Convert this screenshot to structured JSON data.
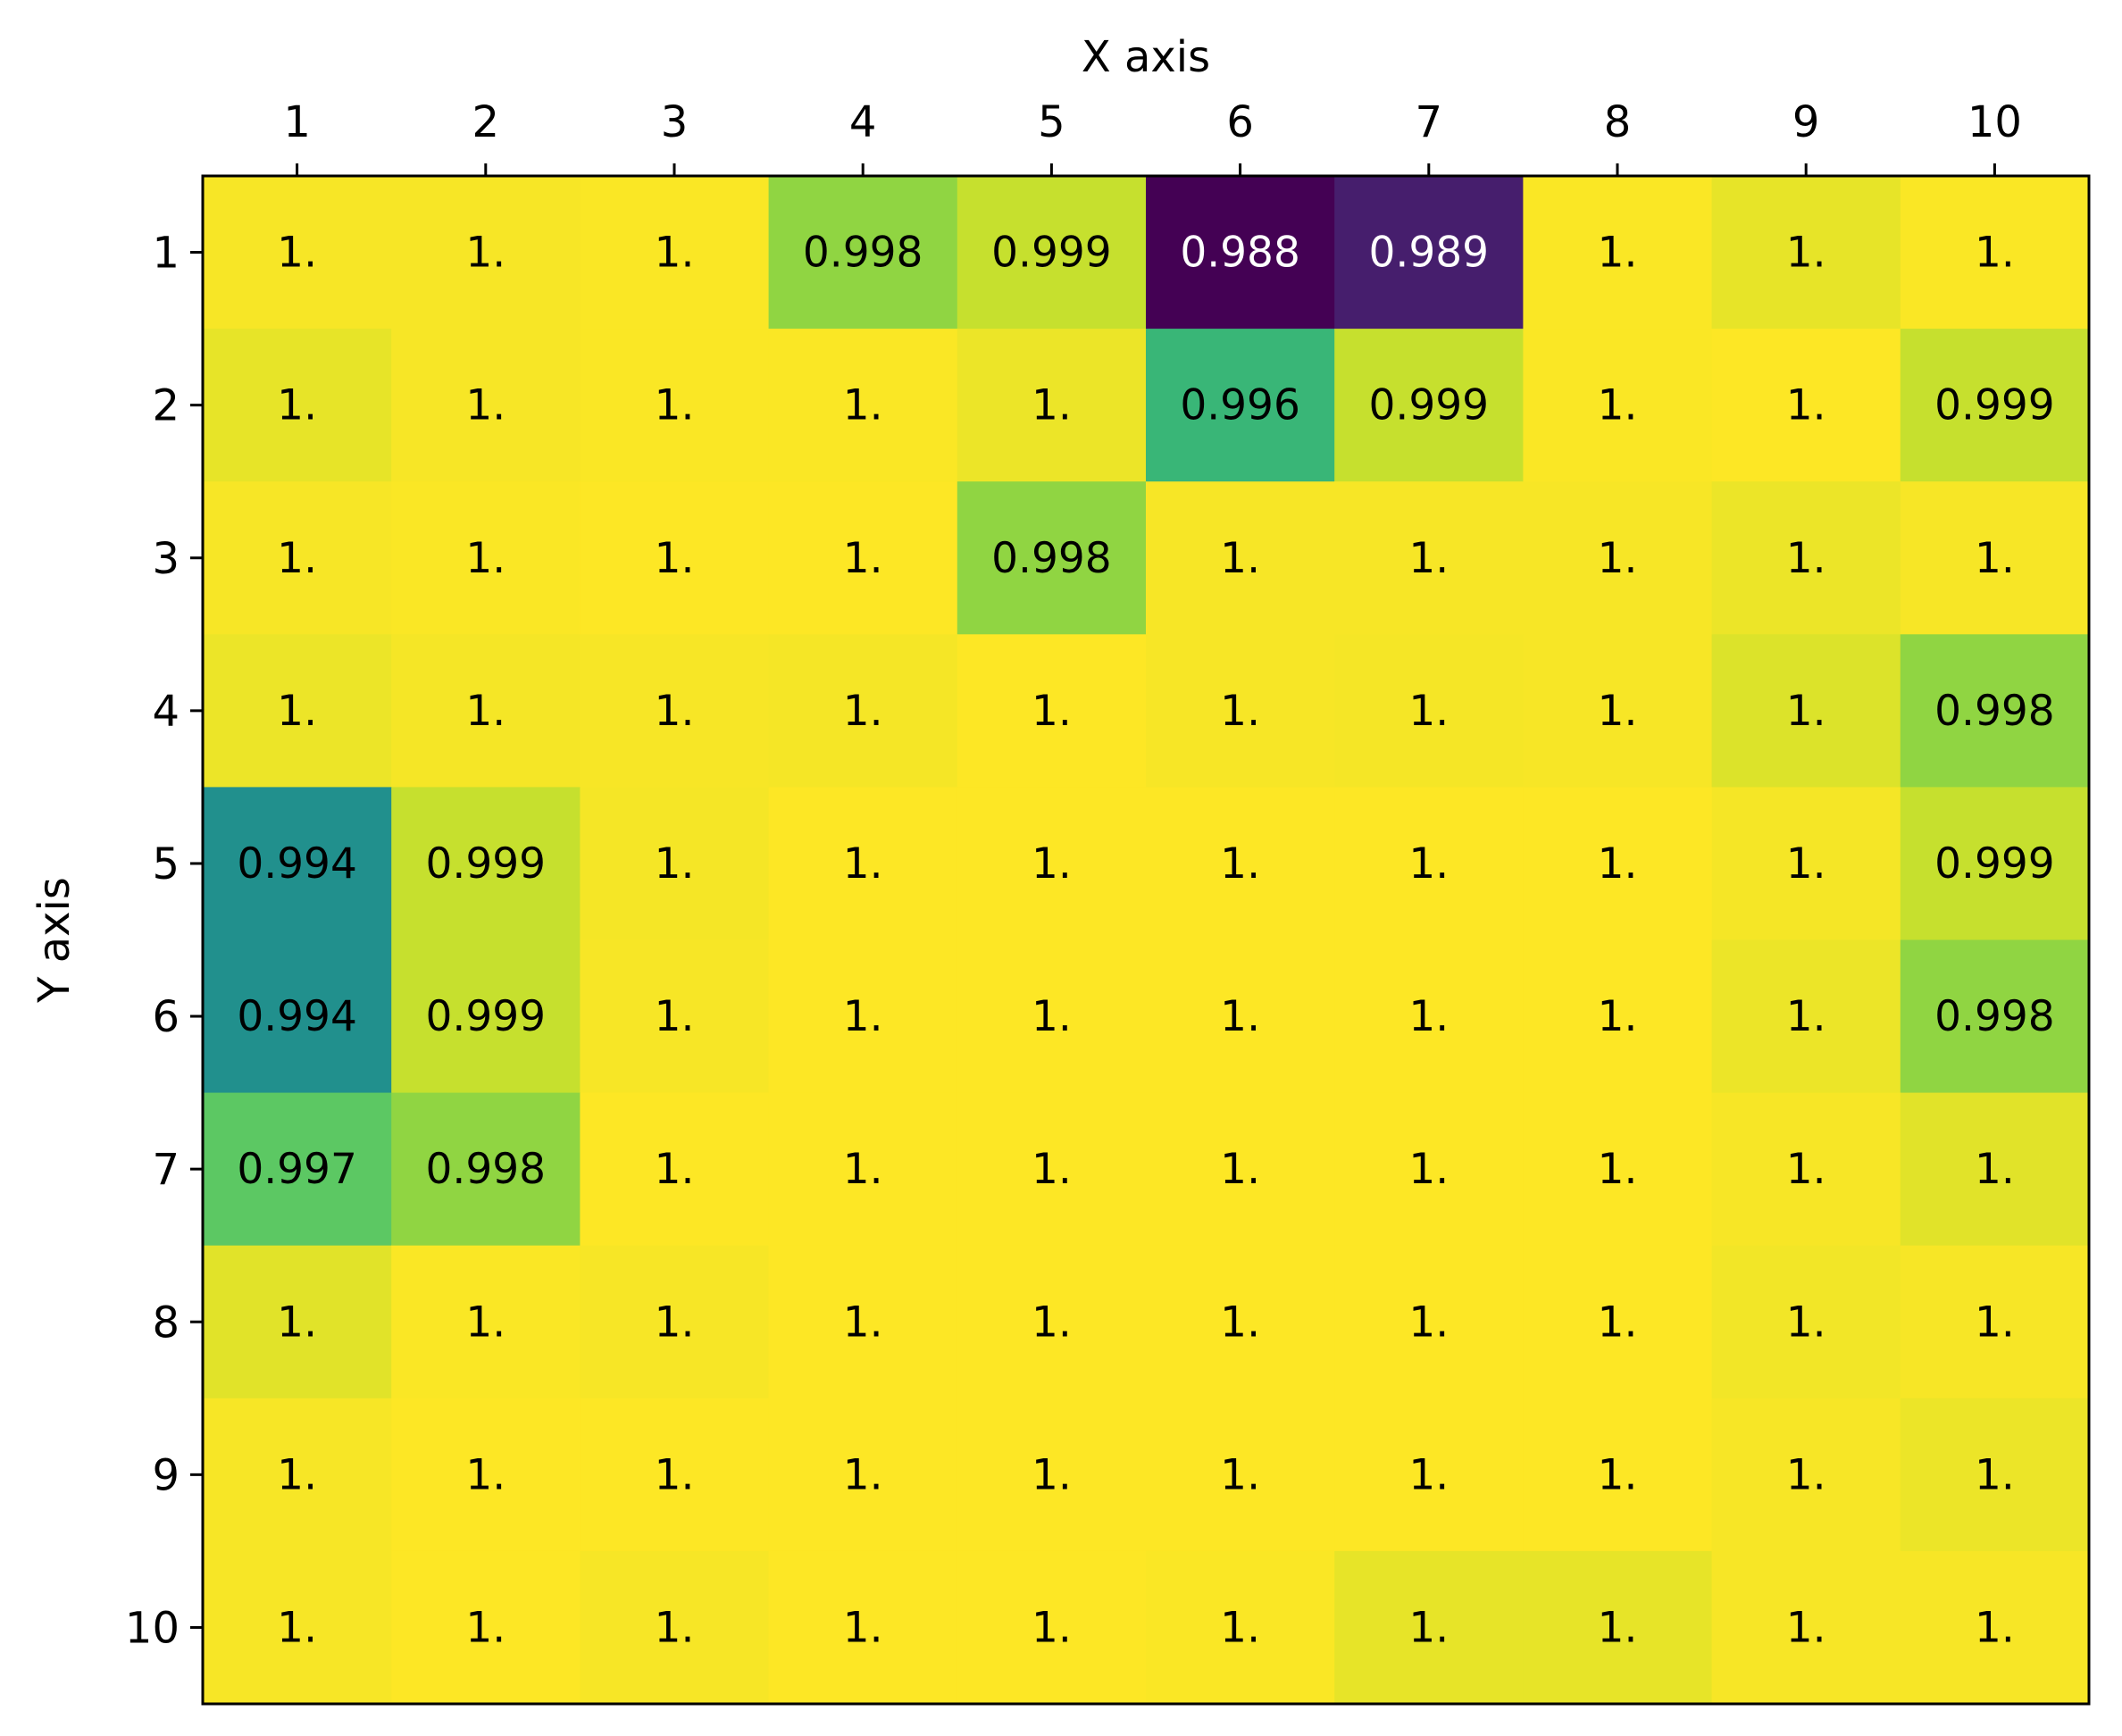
{
  "chart_data": {
    "type": "heatmap",
    "title": "",
    "xlabel": "X axis",
    "ylabel": "Y axis",
    "x_categories": [
      "1",
      "2",
      "3",
      "4",
      "5",
      "6",
      "7",
      "8",
      "9",
      "10"
    ],
    "y_categories": [
      "1",
      "2",
      "3",
      "4",
      "5",
      "6",
      "7",
      "8",
      "9",
      "10"
    ],
    "x_axis_position": "top",
    "colormap": "viridis",
    "grid": false,
    "legend": "none",
    "values": [
      [
        0.9999,
        0.9999,
        0.99995,
        0.998,
        0.999,
        0.988,
        0.989,
        0.99995,
        0.9996,
        0.99995
      ],
      [
        0.9996,
        0.9999,
        0.99995,
        0.99995,
        0.9997,
        0.996,
        0.999,
        0.99995,
        1.0,
        0.999
      ],
      [
        0.9999,
        0.99995,
        1.0,
        1.0,
        0.998,
        0.9999,
        0.9999,
        0.9999,
        0.9997,
        0.9999
      ],
      [
        0.9997,
        0.99985,
        0.9999,
        0.99985,
        1.0,
        0.9999,
        0.99985,
        0.9999,
        0.9994,
        0.998
      ],
      [
        0.994,
        0.999,
        0.99985,
        1.0,
        1.0,
        1.0,
        1.0,
        1.0,
        0.99985,
        0.999
      ],
      [
        0.994,
        0.999,
        0.9999,
        1.0,
        1.0,
        1.0,
        1.0,
        1.0,
        0.9997,
        0.998
      ],
      [
        0.997,
        0.998,
        1.0,
        1.0,
        1.0,
        1.0,
        1.0,
        1.0,
        0.9999,
        0.9995
      ],
      [
        0.9995,
        0.99995,
        0.9999,
        1.0,
        1.0,
        1.0,
        1.0,
        1.0,
        0.9998,
        0.9999
      ],
      [
        0.9999,
        1.0,
        1.0,
        1.0,
        1.0,
        1.0,
        1.0,
        1.0,
        0.9999,
        0.9997
      ],
      [
        0.9999,
        1.0,
        0.9999,
        1.0,
        1.0,
        0.99995,
        0.9996,
        0.9996,
        0.9999,
        0.9999
      ]
    ],
    "value_labels": [
      [
        "1.",
        "1.",
        "1.",
        "0.998",
        "0.999",
        "0.988",
        "0.989",
        "1.",
        "1.",
        "1."
      ],
      [
        "1.",
        "1.",
        "1.",
        "1.",
        "1.",
        "0.996",
        "0.999",
        "1.",
        "1.",
        "0.999"
      ],
      [
        "1.",
        "1.",
        "1.",
        "1.",
        "0.998",
        "1.",
        "1.",
        "1.",
        "1.",
        "1."
      ],
      [
        "1.",
        "1.",
        "1.",
        "1.",
        "1.",
        "1.",
        "1.",
        "1.",
        "1.",
        "0.998"
      ],
      [
        "0.994",
        "0.999",
        "1.",
        "1.",
        "1.",
        "1.",
        "1.",
        "1.",
        "1.",
        "0.999"
      ],
      [
        "0.994",
        "0.999",
        "1.",
        "1.",
        "1.",
        "1.",
        "1.",
        "1.",
        "1.",
        "0.998"
      ],
      [
        "0.997",
        "0.998",
        "1.",
        "1.",
        "1.",
        "1.",
        "1.",
        "1.",
        "1.",
        "1."
      ],
      [
        "1.",
        "1.",
        "1.",
        "1.",
        "1.",
        "1.",
        "1.",
        "1.",
        "1.",
        "1."
      ],
      [
        "1.",
        "1.",
        "1.",
        "1.",
        "1.",
        "1.",
        "1.",
        "1.",
        "1.",
        "1."
      ],
      [
        "1.",
        "1.",
        "1.",
        "1.",
        "1.",
        "1.",
        "1.",
        "1.",
        "1.",
        "1."
      ]
    ],
    "vmin": 0.988,
    "vmax": 1.0
  }
}
